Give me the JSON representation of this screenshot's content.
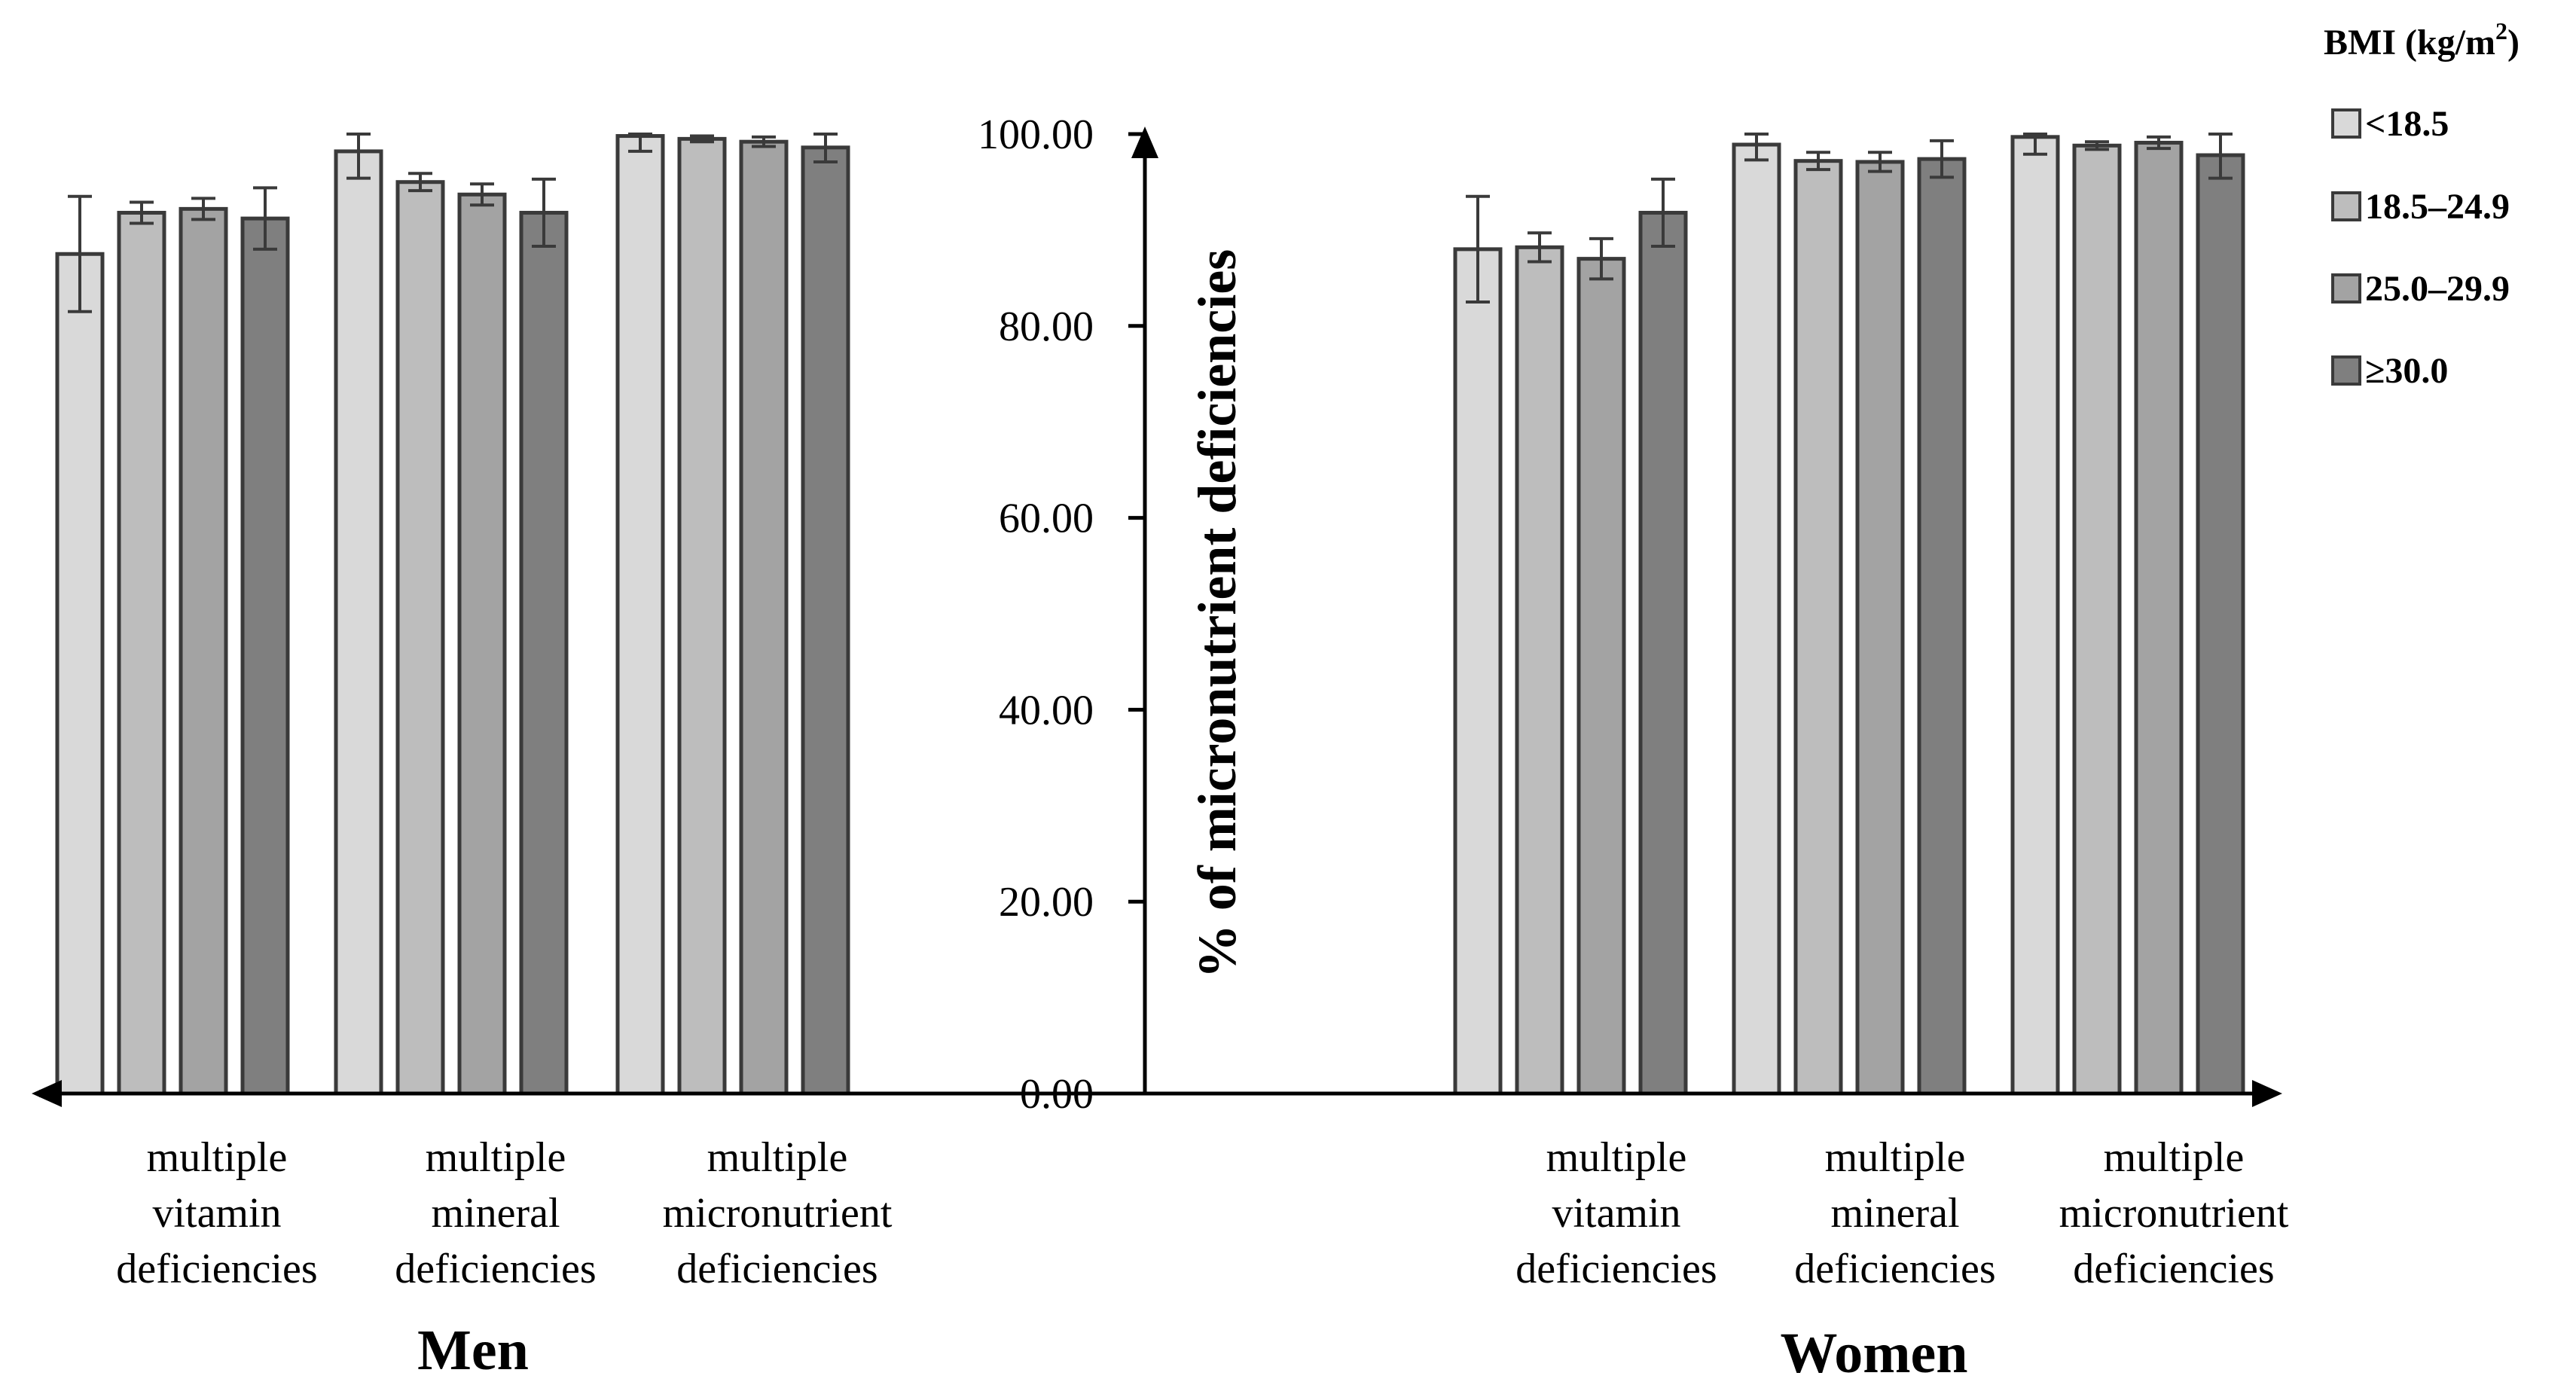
{
  "chart_data": {
    "type": "bar",
    "ylabel": "% of micronutrient deficiencies",
    "ylim": [
      0,
      100
    ],
    "yticks": [
      "0.00",
      "20.00",
      "40.00",
      "60.00",
      "80.00",
      "100.00"
    ],
    "grid": false,
    "legend": {
      "title_main": "BMI (kg/m",
      "title_sup": "2",
      "title_close": ")",
      "placement": "top-right",
      "entries": [
        "<18.5",
        "18.5–24.9",
        "25.0–29.9",
        "≥30.0"
      ]
    },
    "series_colors": [
      "#d9d9d9",
      "#bdbdbd",
      "#a3a3a3",
      "#7f7f7f"
    ],
    "panels": [
      {
        "name": "Men",
        "categories": [
          [
            "multiple",
            "vitamin",
            "deficiencies"
          ],
          [
            "multiple",
            "mineral",
            "deficiencies"
          ],
          [
            "multiple",
            "micronutrient",
            "deficiencies"
          ]
        ],
        "series": [
          {
            "name": "<18.5",
            "values": [
              87.5,
              98.2,
              99.8
            ],
            "errors": [
              6.0,
              2.8,
              1.6
            ]
          },
          {
            "name": "18.5–24.9",
            "values": [
              91.8,
              95.0,
              99.5
            ],
            "errors": [
              1.1,
              0.9,
              0.3
            ]
          },
          {
            "name": "25.0–29.9",
            "values": [
              92.2,
              93.7,
              99.2
            ],
            "errors": [
              1.1,
              1.1,
              0.5
            ]
          },
          {
            "name": "≥30.0",
            "values": [
              91.2,
              91.8,
              98.6
            ],
            "errors": [
              3.2,
              3.5,
              1.5
            ]
          }
        ]
      },
      {
        "name": "Women",
        "categories": [
          [
            "multiple",
            "vitamin",
            "deficiencies"
          ],
          [
            "multiple",
            "mineral",
            "deficiencies"
          ],
          [
            "multiple",
            "micronutrient",
            "deficiencies"
          ]
        ],
        "series": [
          {
            "name": "<18.5",
            "values": [
              88.0,
              98.9,
              99.7
            ],
            "errors": [
              5.5,
              1.6,
              1.8
            ]
          },
          {
            "name": "18.5–24.9",
            "values": [
              88.2,
              97.2,
              98.8
            ],
            "errors": [
              1.5,
              0.9,
              0.4
            ]
          },
          {
            "name": "25.0–29.9",
            "values": [
              87.0,
              97.1,
              99.1
            ],
            "errors": [
              2.1,
              1.0,
              0.6
            ]
          },
          {
            "name": "≥30.0",
            "values": [
              91.8,
              97.4,
              97.8
            ],
            "errors": [
              3.5,
              1.9,
              2.4
            ]
          }
        ]
      }
    ]
  }
}
